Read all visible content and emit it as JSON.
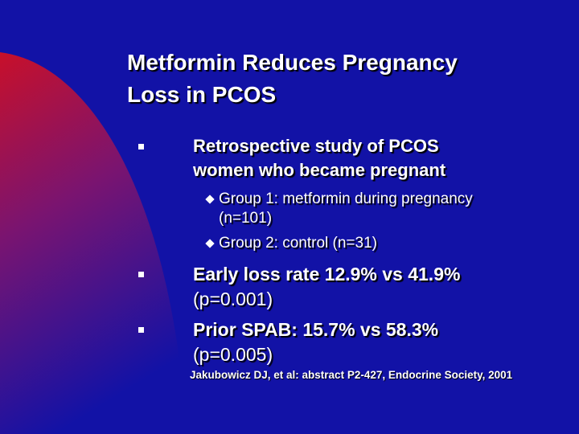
{
  "slide": {
    "title": "Metformin Reduces Pregnancy Loss in PCOS",
    "bullets": [
      {
        "text": "Retrospective study of PCOS women who became pregnant",
        "subbullets": [
          "Group 1: metformin during pregnancy (n=101)",
          "Group 2: control (n=31)"
        ]
      },
      {
        "text": "Early loss rate 12.9% vs 41.9%",
        "detail": "(p=0.001)"
      },
      {
        "text": "Prior SPAB: 15.7% vs 58.3%",
        "detail": "(p=0.005)"
      }
    ],
    "citation": "Jakubowicz DJ, et al: abstract P2-427, Endocrine Society, 2001"
  }
}
